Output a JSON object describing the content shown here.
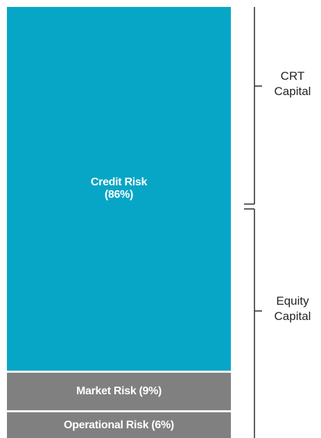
{
  "chart_data": {
    "type": "bar",
    "stacked": true,
    "series": [
      {
        "name": "Credit Risk",
        "color": "#08a6c6",
        "values": [
          86
        ],
        "value_labels": [
          "(86%)"
        ]
      },
      {
        "name": "Market Risk",
        "color": "#808080",
        "values": [
          9
        ],
        "value_labels": [
          "(9%)"
        ]
      },
      {
        "name": "Operational Risk",
        "color": "#808080",
        "values": [
          6
        ],
        "value_labels": [
          "(6%)"
        ]
      }
    ],
    "annotations": [
      "CRT Capital",
      "Equity Capital"
    ]
  }
}
